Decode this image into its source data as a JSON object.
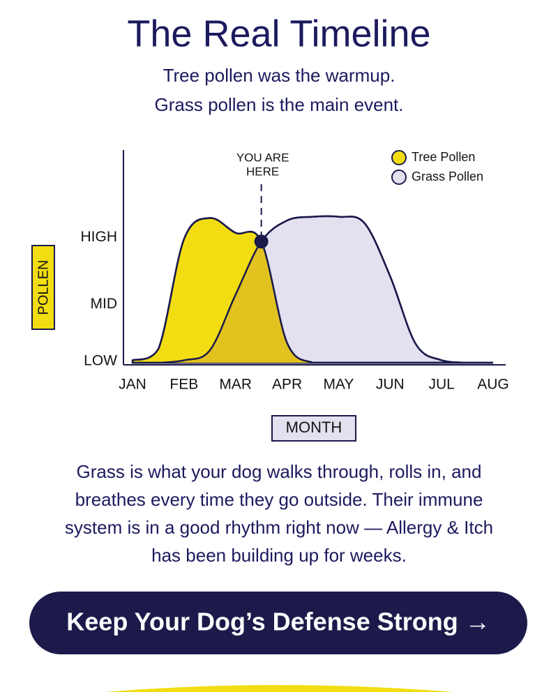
{
  "header": {
    "title": "The Real Timeline",
    "subtitle": [
      "Tree pollen was the warmup.",
      "Grass pollen is the main event."
    ]
  },
  "chart_data": {
    "type": "area",
    "categories": [
      "JAN",
      null,
      "FEB",
      null,
      "MAR",
      null,
      "APR",
      null,
      "MAY",
      null,
      "JUN",
      null,
      "JUL",
      null,
      "AUG"
    ],
    "series": [
      {
        "name": "Tree Pollen",
        "color": "#f2dd12",
        "values": [
          0.02,
          0.11,
          1.0,
          1.17,
          1.05,
          0.98,
          0.16,
          0,
          0,
          0,
          0,
          0,
          0,
          0,
          0
        ]
      },
      {
        "name": "Grass Pollen",
        "color": "#e3e1f0",
        "values": [
          0,
          0,
          0.02,
          0.1,
          0.55,
          0.98,
          1.15,
          1.18,
          1.18,
          1.13,
          0.7,
          0.15,
          0.02,
          0,
          0
        ]
      }
    ],
    "overlap_color": "#e2c21f",
    "ylim": [
      0,
      1.72
    ],
    "yticks": [
      {
        "value": 0,
        "label": "LOW"
      },
      {
        "value": 0.46,
        "label": "MID"
      },
      {
        "value": 1,
        "label": "HIGH"
      }
    ],
    "ylabel": "POLLEN",
    "xlabel": "MONTH",
    "annotation": [
      "YOU ARE",
      "HERE"
    ],
    "grid": false,
    "legend": "top-right"
  },
  "body": [
    "Grass is what your dog walks through, rolls in, and",
    "breathes every time they go outside. Their immune",
    "system is in a good rhythm right now — Allergy & Itch",
    "has been building up for weeks."
  ],
  "cta": "Keep Your Dog’s Defense Strong →"
}
